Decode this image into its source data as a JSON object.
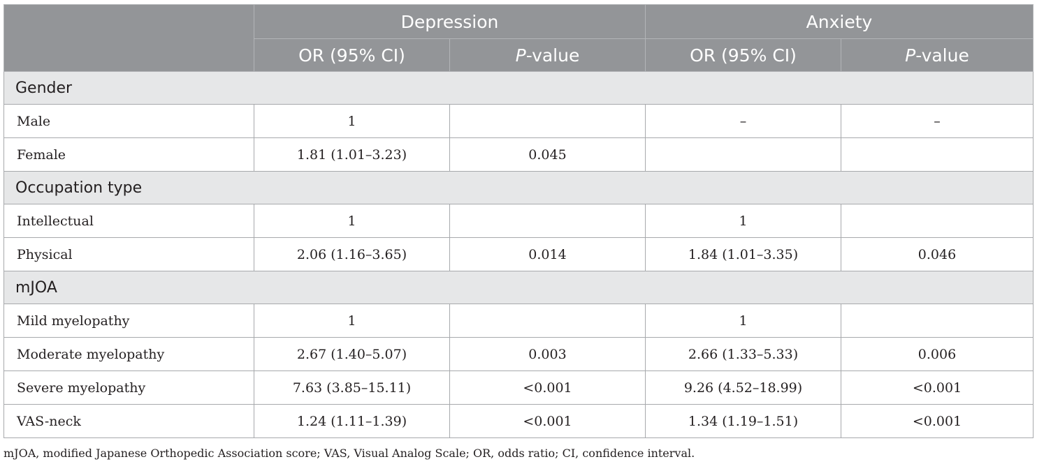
{
  "header": {
    "group1": "Depression",
    "group2": "Anxiety",
    "or_ci": "OR (95% CI)",
    "p_italic": "P",
    "p_rest": "-value"
  },
  "sections": [
    {
      "title": "Gender",
      "rows": [
        {
          "label": "Male",
          "dep_or": "1",
          "dep_p": "",
          "anx_or": "–",
          "anx_p": "–"
        },
        {
          "label": "Female",
          "dep_or": "1.81 (1.01–3.23)",
          "dep_p": "0.045",
          "anx_or": "",
          "anx_p": ""
        }
      ]
    },
    {
      "title": "Occupation type",
      "rows": [
        {
          "label": "Intellectual",
          "dep_or": "1",
          "dep_p": "",
          "anx_or": "1",
          "anx_p": ""
        },
        {
          "label": "Physical",
          "dep_or": "2.06 (1.16–3.65)",
          "dep_p": "0.014",
          "anx_or": "1.84 (1.01–3.35)",
          "anx_p": "0.046"
        }
      ]
    },
    {
      "title": "mJOA",
      "rows": [
        {
          "label": "Mild myelopathy",
          "dep_or": "1",
          "dep_p": "",
          "anx_or": "1",
          "anx_p": ""
        },
        {
          "label": "Moderate myelopathy",
          "dep_or": "2.67 (1.40–5.07)",
          "dep_p": "0.003",
          "anx_or": "2.66 (1.33–5.33)",
          "anx_p": "0.006"
        },
        {
          "label": "Severe myelopathy",
          "dep_or": "7.63 (3.85–15.11)",
          "dep_p": "<0.001",
          "anx_or": "9.26 (4.52–18.99)",
          "anx_p": "<0.001"
        },
        {
          "label": "VAS-neck",
          "dep_or": "1.24 (1.11–1.39)",
          "dep_p": "<0.001",
          "anx_or": "1.34 (1.19–1.51)",
          "anx_p": "<0.001"
        }
      ]
    }
  ],
  "footnote": "mJOA, modified Japanese Orthopedic Association score; VAS, Visual Analog Scale; OR, odds ratio; CI, confidence interval."
}
